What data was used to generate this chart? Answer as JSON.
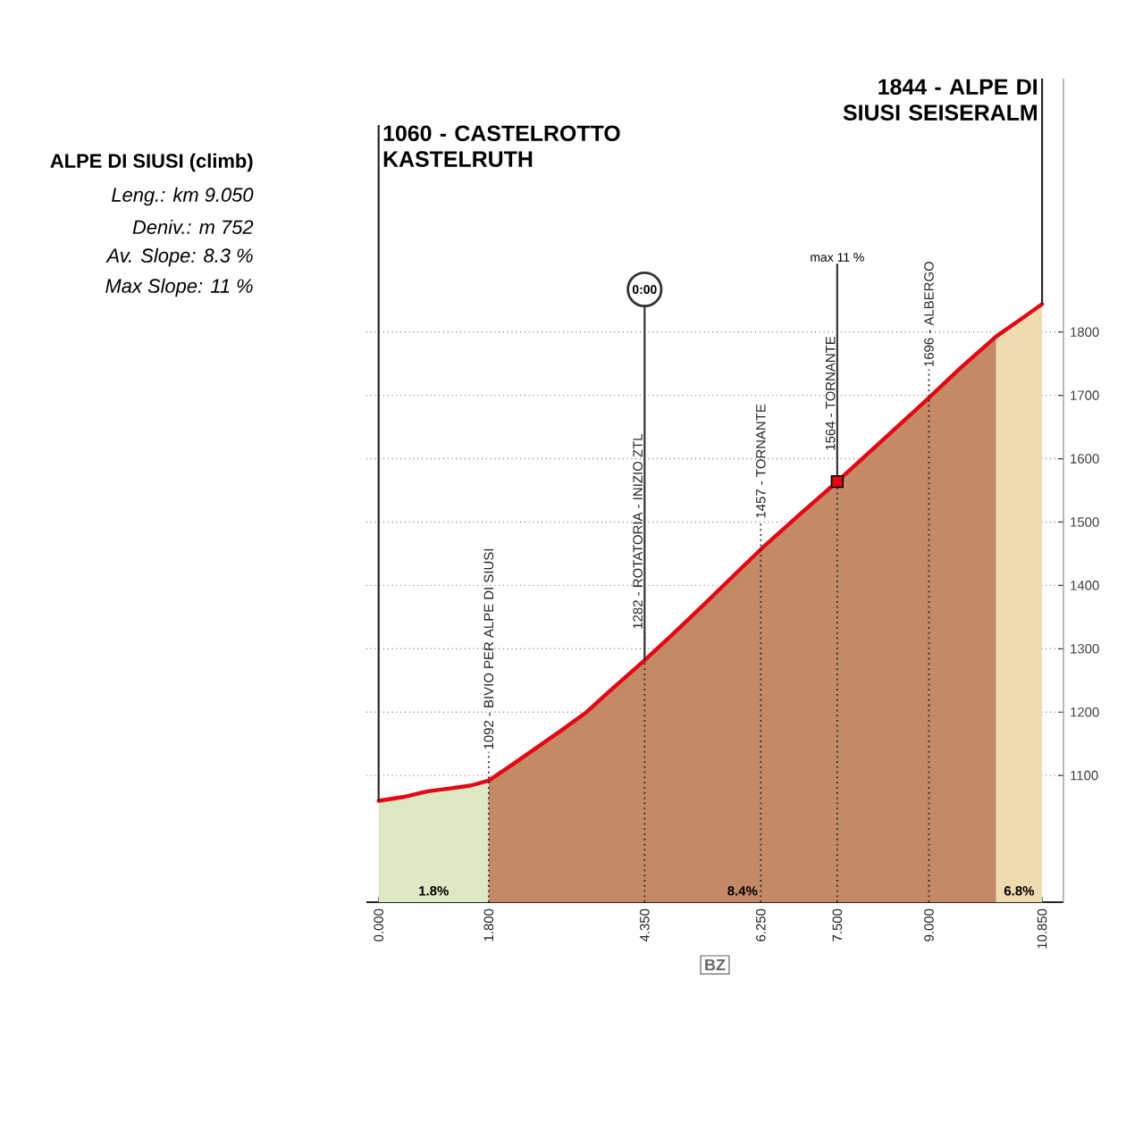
{
  "chart_data": {
    "type": "area",
    "title": "ALPE DI SIUSI (climb)",
    "xlabel": "BZ",
    "annotations": [
      "Leng.: km 9.050",
      "Deniv.: m 752",
      "Av. Slope: 8.3 %",
      "Max Slope: 11 %",
      {
        "text": "1060 - CASTELROTTO KASTELRUTH",
        "x": 0,
        "y": 1060
      },
      {
        "text": "1092 - BIVIO PER ALPE DI SIUSI",
        "x": 1.8,
        "y": 1092
      },
      {
        "text": "1282 - ROTATORIA - INIZIO ZTL",
        "x": 4.35,
        "y": 1282
      },
      {
        "text": "0:00",
        "x": 4.35,
        "y": 1282
      },
      {
        "text": "1457 - TORNANTE",
        "x": 6.25,
        "y": 1457
      },
      {
        "text": "1564 - TORNANTE",
        "x": 7.5,
        "y": 1564
      },
      {
        "text": "max 11 %",
        "x": 7.5,
        "y": 1564
      },
      {
        "text": "1696 - ALBERGO",
        "x": 9.0,
        "y": 1696
      },
      {
        "text": "1844 - ALPE DI SIUSI SEISERALM",
        "x": 10.85,
        "y": 1844
      }
    ],
    "series": [
      {
        "name": "1.8%",
        "color": "#dde9c4",
        "x": [
          0,
          0.4,
          0.8,
          1.2,
          1.5,
          1.8
        ],
        "values": [
          1060,
          1066,
          1075,
          1080,
          1084,
          1092
        ]
      },
      {
        "name": "8.4%",
        "color": "#c48a68",
        "x": [
          1.8,
          2.2,
          2.6,
          3.0,
          3.4,
          3.8,
          4.35,
          4.8,
          5.3,
          5.8,
          6.25,
          6.9,
          7.5,
          8.0,
          8.5,
          9.0,
          9.5,
          10.1
        ],
        "values": [
          1092,
          1118,
          1145,
          1172,
          1200,
          1235,
          1282,
          1322,
          1368,
          1415,
          1457,
          1513,
          1564,
          1608,
          1652,
          1696,
          1742,
          1793
        ]
      },
      {
        "name": "6.8%",
        "color": "#efdcae",
        "x": [
          10.1,
          10.5,
          10.85
        ],
        "values": [
          1793,
          1820,
          1844
        ]
      },
      {
        "type": "line",
        "color": "#e30613",
        "x": [
          0,
          0.4,
          0.8,
          1.2,
          1.5,
          1.8,
          2.2,
          2.6,
          3.0,
          3.4,
          3.8,
          4.35,
          4.8,
          5.3,
          5.8,
          6.25,
          6.9,
          7.5,
          8.0,
          8.5,
          9.0,
          9.5,
          10.1,
          10.5,
          10.85
        ],
        "values": [
          1060,
          1066,
          1075,
          1080,
          1084,
          1092,
          1118,
          1145,
          1172,
          1200,
          1235,
          1282,
          1322,
          1368,
          1415,
          1457,
          1513,
          1564,
          1608,
          1652,
          1696,
          1742,
          1793,
          1820,
          1844
        ]
      },
      {
        "type": "scatter",
        "color": "#e30613",
        "marker": "square",
        "x": [
          7.5
        ],
        "values": [
          1564
        ]
      }
    ],
    "xlim": [
      -0.2,
      11.2
    ],
    "xticks": [
      {
        "value": 0,
        "label": "0.000"
      },
      {
        "value": 1.8,
        "label": "1.800"
      },
      {
        "value": 4.35,
        "label": "4.350"
      },
      {
        "value": 6.25,
        "label": "6.250"
      },
      {
        "value": 7.5,
        "label": "7.500"
      },
      {
        "value": 9.0,
        "label": "9.000"
      },
      {
        "value": 10.85,
        "label": "10.850"
      }
    ],
    "ylim": [
      900,
      2200
    ],
    "yticks": [
      1100,
      1200,
      1300,
      1400,
      1500,
      1600,
      1700,
      1800
    ],
    "grid": true,
    "legend": false
  }
}
